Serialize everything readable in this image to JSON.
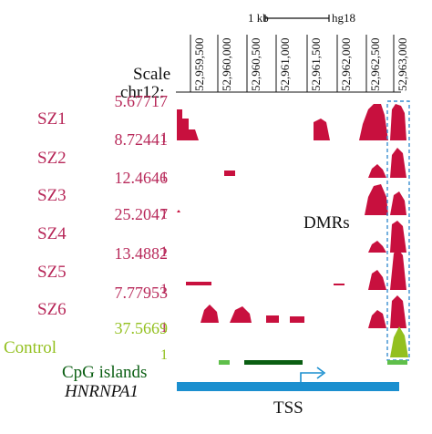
{
  "ruler": {
    "scalebar_label": "1 kb",
    "assembly": "hg18",
    "scale_label": "Scale",
    "chrom_label": "chr12:",
    "positions": [
      "52,959,500",
      "52,960,000",
      "52,960,500",
      "52,961,000",
      "52,961,500",
      "52,962,000",
      "52,962,500",
      "52,963,000"
    ]
  },
  "tracks": [
    {
      "name": "SZ1",
      "max": "5.67717",
      "min": "1",
      "color": "#c8103e"
    },
    {
      "name": "SZ2",
      "max": "8.72441",
      "min": "1",
      "color": "#c8103e"
    },
    {
      "name": "SZ3",
      "max": "12.4646",
      "min": "1",
      "color": "#c8103e"
    },
    {
      "name": "SZ4",
      "max": "25.2047",
      "min": "1",
      "color": "#c8103e"
    },
    {
      "name": "SZ5",
      "max": "13.4882",
      "min": "1",
      "color": "#c8103e"
    },
    {
      "name": "SZ6",
      "max": "7.77953",
      "min": "1",
      "color": "#c8103e"
    },
    {
      "name": "Control",
      "max": "37.5669",
      "min": "1",
      "color": "#93c01f"
    }
  ],
  "cpg_label": "CpG islands",
  "gene_label": "HNRNPA1",
  "dmr_label": "DMRs",
  "tss_label": "TSS",
  "colors": {
    "sample": "#b8295a",
    "signal": "#c8103e",
    "control": "#93c01f",
    "cpg": "#0a5e12",
    "gene": "#1b8fcf",
    "dmr_box": "#3a8fd0"
  }
}
